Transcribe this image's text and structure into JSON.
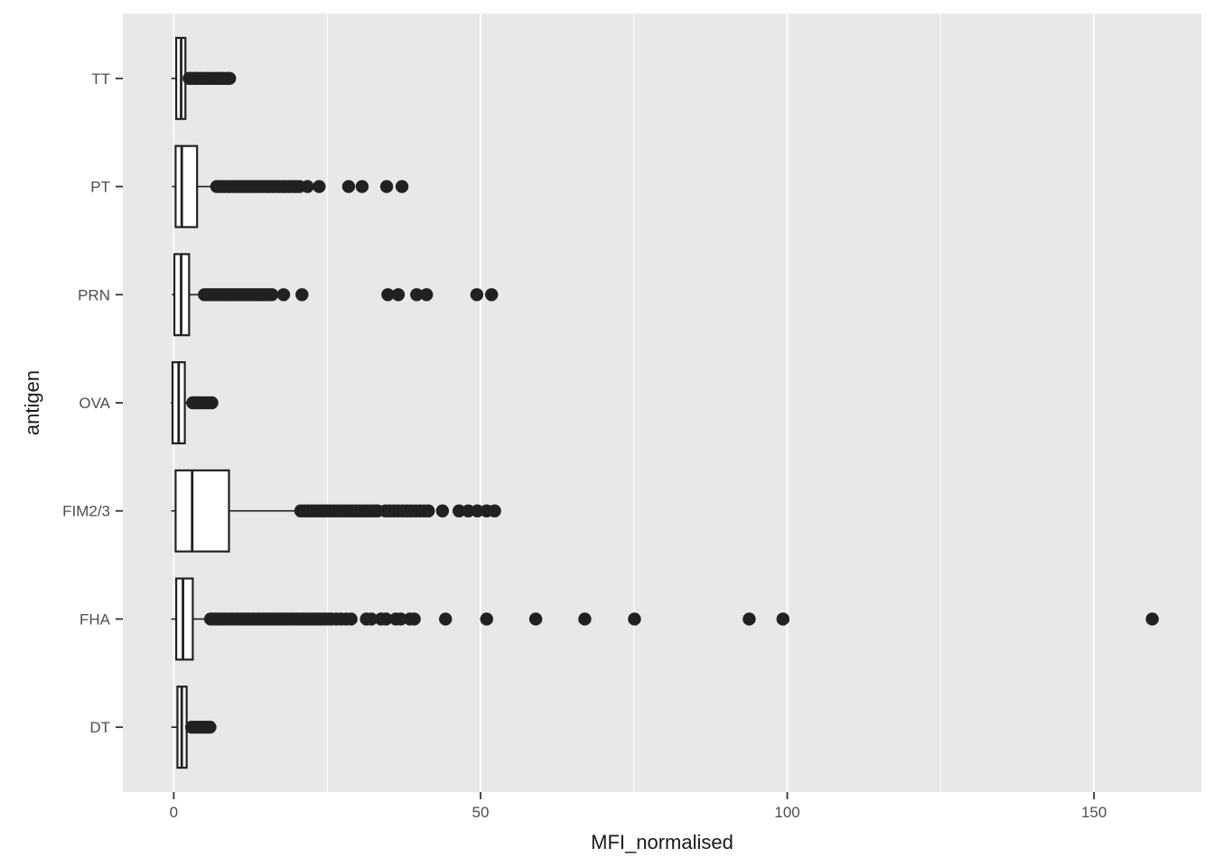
{
  "figure": {
    "x_axis_title": "MFI_normalised",
    "y_axis_title": "antigen"
  },
  "chart_data": {
    "type": "boxplot",
    "orientation": "horizontal",
    "title": "",
    "xlabel": "MFI_normalised",
    "ylabel": "antigen",
    "xlim": [
      -8.3,
      167.5
    ],
    "x_ticks": [
      0,
      50,
      100,
      150
    ],
    "x_tick_labels": [
      "0",
      "50",
      "100",
      "150"
    ],
    "x_minor_gridlines": [
      25,
      75,
      125
    ],
    "grid": "major-and-minor-white-on-grey",
    "legend": "none",
    "categories_top_to_bottom": [
      "TT",
      "PT",
      "PRN",
      "OVA",
      "FIM2/3",
      "FHA",
      "DT"
    ],
    "series": [
      {
        "antigen": "TT",
        "whisker_low": -0.4,
        "q1": 0.4,
        "median": 1.2,
        "q3": 1.9,
        "whisker_high": 2.4,
        "outliers": [
          2.5,
          2.9,
          3.4,
          3.8,
          4.3,
          4.7,
          5.2,
          5.6,
          6.1,
          6.5,
          7,
          7.4,
          7.9,
          8.3,
          8.8,
          9.1
        ]
      },
      {
        "antigen": "PT",
        "whisker_low": -0.3,
        "q1": 0.3,
        "median": 1.3,
        "q3": 3.8,
        "whisker_high": 7,
        "outliers": [
          7,
          7.4,
          7.9,
          8.3,
          8.8,
          9.2,
          9.7,
          10.1,
          10.6,
          11,
          11.5,
          11.9,
          12.4,
          12.8,
          13.3,
          13.7,
          14.2,
          14.6,
          15.1,
          15.5,
          16,
          16.4,
          16.9,
          17.3,
          17.8,
          18.2,
          18.7,
          19.1,
          19.6,
          20,
          20.5,
          21.8,
          23.7,
          28.5,
          30.7,
          34.7,
          37.2
        ]
      },
      {
        "antigen": "PRN",
        "whisker_low": -0.3,
        "q1": 0.1,
        "median": 1.2,
        "q3": 2.5,
        "whisker_high": 5,
        "outliers": [
          5,
          5.5,
          6,
          6.5,
          7,
          7.5,
          8,
          8.5,
          9,
          9.5,
          10,
          10.5,
          11,
          11.5,
          12,
          12.5,
          13,
          13.5,
          14,
          14.5,
          15,
          15.5,
          16,
          17.9,
          20.9,
          34.9,
          36.6,
          39.6,
          41.2,
          49.4,
          51.8
        ]
      },
      {
        "antigen": "OVA",
        "whisker_low": -0.5,
        "q1": -0.2,
        "median": 0.8,
        "q3": 1.8,
        "whisker_high": 2.4,
        "outliers": [
          3.1,
          3.6,
          4.1,
          4.6,
          5.1,
          5.6,
          6.2
        ]
      },
      {
        "antigen": "FIM2/3",
        "whisker_low": -0.4,
        "q1": 0.3,
        "median": 3,
        "q3": 9,
        "whisker_high": 20.7,
        "outliers": [
          20.7,
          21.3,
          21.9,
          22.5,
          23.1,
          23.7,
          24.3,
          24.9,
          25.5,
          26.1,
          26.7,
          27.3,
          27.9,
          28.5,
          29.1,
          29.7,
          30.3,
          30.9,
          31.5,
          32.1,
          32.7,
          33.2,
          34.5,
          35.2,
          35.9,
          36.6,
          37.3,
          38,
          38.7,
          39.4,
          40.1,
          40.8,
          41.5,
          43.8,
          46.5,
          48,
          49.5,
          51,
          52.3
        ]
      },
      {
        "antigen": "FHA",
        "whisker_low": -0.4,
        "q1": 0.4,
        "median": 1.5,
        "q3": 3.1,
        "whisker_high": 5.5,
        "outliers": [
          6,
          6.5,
          6.9,
          7.4,
          7.8,
          8.3,
          8.7,
          9.2,
          9.6,
          10.1,
          10.5,
          11,
          11.4,
          11.9,
          12.3,
          12.8,
          13.2,
          13.7,
          14.1,
          14.6,
          15,
          15.5,
          15.9,
          16.4,
          16.8,
          17.3,
          17.7,
          18.2,
          18.6,
          19.1,
          19.5,
          20,
          20.4,
          20.9,
          21.3,
          21.8,
          22.2,
          22.7,
          23.1,
          23.6,
          24,
          24.5,
          24.9,
          25.4,
          25.7,
          26.5,
          27.3,
          28.1,
          28.9,
          31.4,
          32.2,
          33.8,
          34.6,
          36.2,
          37,
          38.5,
          39.2,
          44.3,
          51,
          59,
          67,
          75.1,
          93.8,
          99.3,
          159.5
        ]
      },
      {
        "antigen": "DT",
        "whisker_low": -0.4,
        "q1": 0.6,
        "median": 1.3,
        "q3": 2.1,
        "whisker_high": 2.8,
        "outliers": [
          2.9,
          3.4,
          3.9,
          4.4,
          4.9,
          5.4,
          5.9
        ]
      }
    ],
    "colors": {
      "panel_background": "#E8E8E8",
      "gridline": "#FFFFFF",
      "box_fill": "#FFFFFF",
      "box_stroke": "#212121",
      "outlier_dot": "#212121",
      "tick_label_text": "#4D4D4D",
      "axis_title_text": "#1A1A1A",
      "tick_mark": "#333333"
    }
  }
}
